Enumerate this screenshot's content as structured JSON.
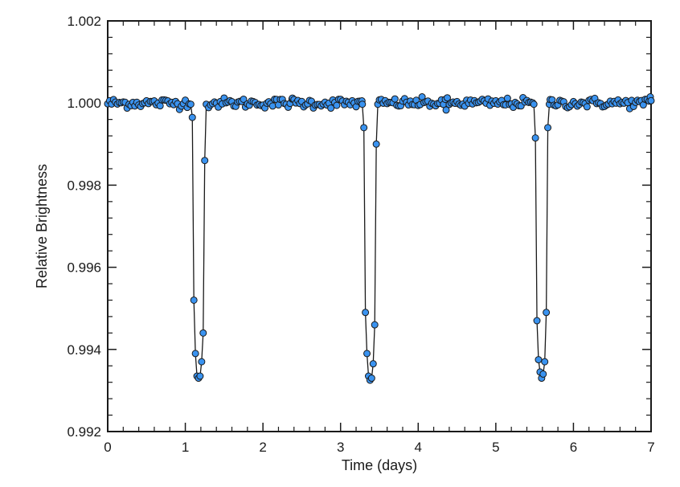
{
  "chart_data": {
    "type": "scatter",
    "xlabel": "Time (days)",
    "ylabel": "Relative Brightness",
    "xlim": [
      0,
      7
    ],
    "ylim": [
      0.992,
      1.002
    ],
    "x_ticks": [
      0,
      1,
      2,
      3,
      4,
      5,
      6,
      7
    ],
    "x_tick_labels": [
      "0",
      "1",
      "2",
      "3",
      "4",
      "5",
      "6",
      "7"
    ],
    "y_ticks": [
      0.992,
      0.994,
      0.996,
      0.998,
      1.0,
      1.002
    ],
    "y_tick_labels": [
      "0.992",
      "0.994",
      "0.996",
      "0.998",
      "1.000",
      "1.002"
    ],
    "grid": false,
    "legend": "none",
    "marker_color": "#3a93f0",
    "marker_edge_color": "#1a1a1a",
    "line_color": "#1a1a1a",
    "series": [
      {
        "baseline": 1.0,
        "baseline_scatter": 6e-05,
        "baseline_spacing": 0.025,
        "transits": [
          {
            "points": [
              [
                1.07,
                0.99997
              ],
              [
                1.09,
                0.99965
              ],
              [
                1.11,
                0.9952
              ],
              [
                1.13,
                0.9939
              ],
              [
                1.15,
                0.99335
              ],
              [
                1.17,
                0.9933
              ],
              [
                1.19,
                0.99335
              ],
              [
                1.21,
                0.9937
              ],
              [
                1.23,
                0.9944
              ],
              [
                1.25,
                0.9986
              ],
              [
                1.27,
                0.99997
              ]
            ]
          },
          {
            "points": [
              [
                3.28,
                0.99997
              ],
              [
                3.3,
                0.9994
              ],
              [
                3.32,
                0.9949
              ],
              [
                3.34,
                0.9939
              ],
              [
                3.36,
                0.99335
              ],
              [
                3.38,
                0.99325
              ],
              [
                3.4,
                0.9933
              ],
              [
                3.42,
                0.99365
              ],
              [
                3.44,
                0.9946
              ],
              [
                3.46,
                0.999
              ],
              [
                3.48,
                0.99997
              ]
            ]
          },
          {
            "points": [
              [
                5.49,
                0.99997
              ],
              [
                5.51,
                0.99915
              ],
              [
                5.53,
                0.9947
              ],
              [
                5.55,
                0.99375
              ],
              [
                5.57,
                0.99345
              ],
              [
                5.59,
                0.9933
              ],
              [
                5.61,
                0.9934
              ],
              [
                5.63,
                0.9937
              ],
              [
                5.65,
                0.9949
              ],
              [
                5.67,
                0.9994
              ],
              [
                5.69,
                0.99997
              ]
            ]
          }
        ],
        "notable_points": [
          [
            2.38,
            1.00012
          ],
          [
            4.36,
            0.99983
          ],
          [
            6.99,
            1.00015
          ]
        ]
      }
    ]
  }
}
